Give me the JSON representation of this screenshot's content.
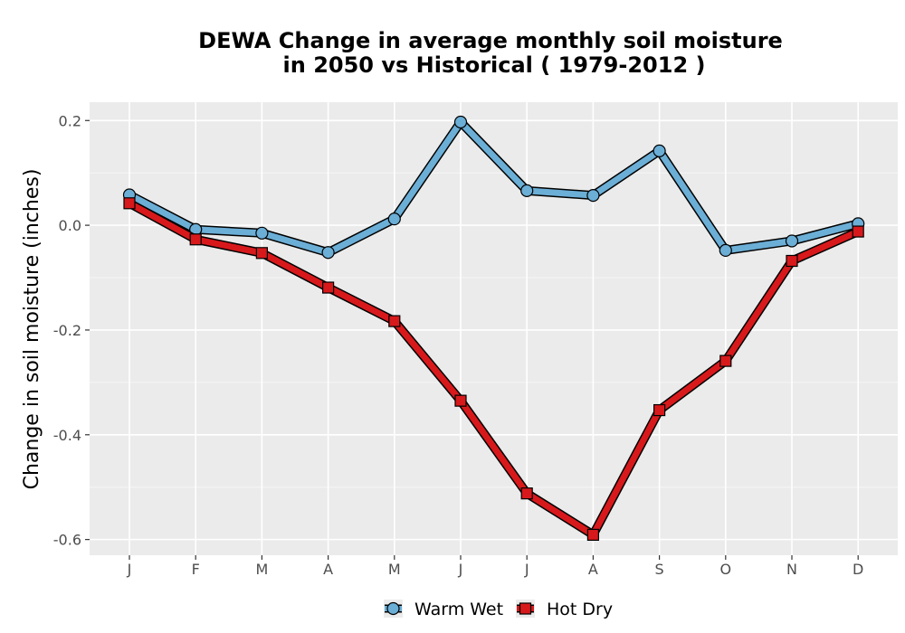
{
  "chart_data": {
    "type": "line",
    "title_line1": "DEWA  Change in average monthly soil moisture",
    "title_line2": "in 2050 vs Historical ( 1979-2012 )",
    "xlabel": "",
    "ylabel": "Change in soil moisture (inches)",
    "categories": [
      "J",
      "F",
      "M",
      "A",
      "M",
      "J",
      "J",
      "A",
      "S",
      "O",
      "N",
      "D"
    ],
    "ylim": [
      -0.63,
      0.235
    ],
    "yticks": [
      0.2,
      0.0,
      -0.2,
      -0.4,
      -0.6
    ],
    "ytick_labels": [
      "0.2",
      "0.0",
      "-0.2",
      "-0.4",
      "-0.6"
    ],
    "grid": true,
    "legend_position": "bottom",
    "series": [
      {
        "name": "Warm Wet",
        "color": "#6baed6",
        "marker": "circle",
        "values": [
          0.058,
          -0.008,
          -0.015,
          -0.052,
          0.012,
          0.197,
          0.066,
          0.057,
          0.142,
          -0.048,
          -0.03,
          0.003
        ]
      },
      {
        "name": "Hot Dry",
        "color": "#d7191c",
        "marker": "square",
        "values": [
          0.042,
          -0.027,
          -0.053,
          -0.119,
          -0.183,
          -0.335,
          -0.512,
          -0.591,
          -0.353,
          -0.259,
          -0.068,
          -0.012
        ]
      }
    ]
  }
}
